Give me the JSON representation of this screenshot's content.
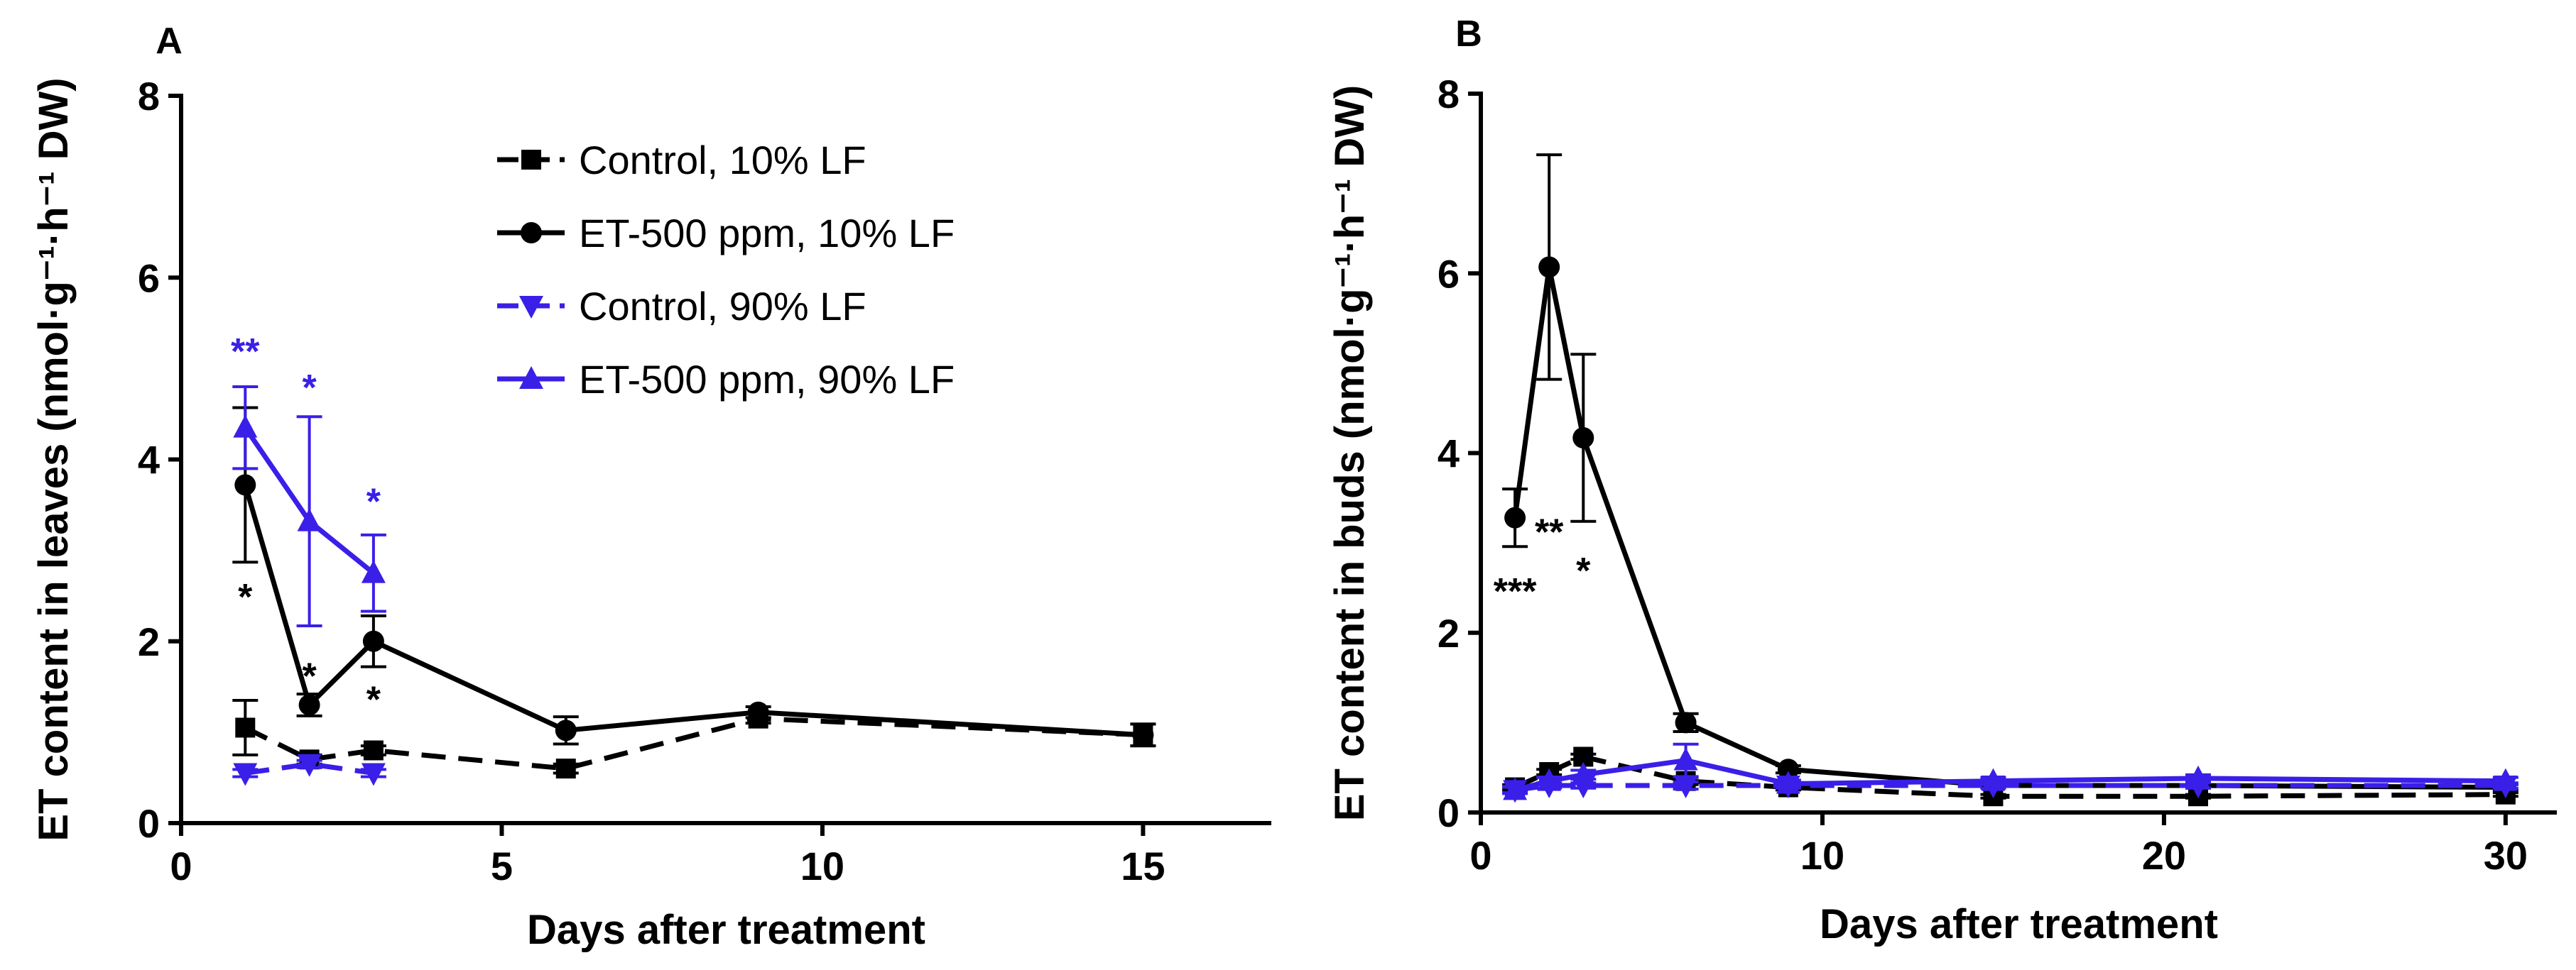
{
  "colors": {
    "black": "#000000",
    "blue": "#3a1fe8"
  },
  "chart_data": [
    {
      "type": "line",
      "panel": "A",
      "xlabel": "Days after treatment",
      "ylabel": "ET content in leaves (nmol·g⁻¹·h⁻¹ DW)",
      "xlim": [
        0,
        17
      ],
      "ylim": [
        0,
        8
      ],
      "xticks": [
        0,
        5,
        10,
        15
      ],
      "yticks": [
        0,
        2,
        4,
        6,
        8
      ],
      "legend": {
        "position": "top-center",
        "entries": [
          "Control, 10% LF",
          "ET-500 ppm, 10% LF",
          "Control, 90% LF",
          "ET-500 ppm, 90% LF"
        ]
      },
      "series": [
        {
          "name": "Control, 10% LF",
          "color": "black",
          "dash": "dashed",
          "marker": "square",
          "x": [
            1,
            2,
            3,
            6,
            9,
            15
          ],
          "y": [
            1.05,
            0.7,
            0.8,
            0.6,
            1.15,
            0.97
          ],
          "err": [
            0.3,
            0.05,
            0.05,
            0.05,
            0.05,
            0.12
          ]
        },
        {
          "name": "ET-500 ppm, 10% LF",
          "color": "black",
          "dash": "solid",
          "marker": "circle",
          "x": [
            1,
            2,
            3,
            6,
            9,
            15
          ],
          "y": [
            3.72,
            1.3,
            2.0,
            1.02,
            1.22,
            0.97
          ],
          "err": [
            0.85,
            0.12,
            0.28,
            0.15,
            0.06,
            0.12
          ]
        },
        {
          "name": "Control, 90% LF",
          "color": "blue",
          "dash": "dashed",
          "marker": "triangle-down",
          "x": [
            1,
            2,
            3
          ],
          "y": [
            0.55,
            0.65,
            0.55
          ],
          "err": [
            0.04,
            0.04,
            0.04
          ]
        },
        {
          "name": "ET-500 ppm, 90% LF",
          "color": "blue",
          "dash": "solid",
          "marker": "triangle-up",
          "x": [
            1,
            2,
            3
          ],
          "y": [
            4.35,
            3.32,
            2.75
          ],
          "err": [
            0.45,
            1.15,
            0.42
          ]
        }
      ],
      "annotations": [
        {
          "text": "**",
          "x": 1,
          "y": 5.05,
          "color": "blue"
        },
        {
          "text": "*",
          "x": 2,
          "y": 4.65,
          "color": "blue"
        },
        {
          "text": "*",
          "x": 3,
          "y": 3.4,
          "color": "blue"
        },
        {
          "text": "*",
          "x": 1,
          "y": 2.35,
          "color": "black"
        },
        {
          "text": "*",
          "x": 2,
          "y": 1.48,
          "color": "black"
        },
        {
          "text": "*",
          "x": 3,
          "y": 1.22,
          "color": "black"
        }
      ]
    },
    {
      "type": "line",
      "panel": "B",
      "xlabel": "Days after treatment",
      "ylabel": "ET content in buds (nmol·g⁻¹·h⁻¹ DW)",
      "xlim": [
        0,
        31.5
      ],
      "ylim": [
        0,
        8
      ],
      "xticks": [
        0,
        10,
        20,
        30
      ],
      "yticks": [
        0,
        2,
        4,
        6,
        8
      ],
      "legend": {
        "position": "none",
        "entries": []
      },
      "series": [
        {
          "name": "Control, 10% LF",
          "color": "black",
          "dash": "dashed",
          "marker": "square",
          "x": [
            1,
            2,
            3,
            6,
            9,
            15,
            21,
            30
          ],
          "y": [
            0.28,
            0.45,
            0.62,
            0.35,
            0.28,
            0.18,
            0.18,
            0.2
          ],
          "err": [
            0.03,
            0.03,
            0.03,
            0.04,
            0.03,
            0.02,
            0.02,
            0.02
          ]
        },
        {
          "name": "ET-500 ppm, 10% LF",
          "color": "black",
          "dash": "solid",
          "marker": "circle",
          "x": [
            1,
            2,
            3,
            6,
            9,
            15,
            21,
            30
          ],
          "y": [
            3.28,
            6.07,
            4.17,
            1.0,
            0.48,
            0.3,
            0.3,
            0.28
          ],
          "err": [
            0.32,
            1.25,
            0.93,
            0.1,
            0.04,
            0.03,
            0.03,
            0.03
          ]
        },
        {
          "name": "Control, 90% LF",
          "color": "blue",
          "dash": "dashed",
          "marker": "triangle-down",
          "x": [
            1,
            2,
            3,
            6,
            9,
            15,
            21,
            30
          ],
          "y": [
            0.25,
            0.3,
            0.3,
            0.3,
            0.3,
            0.3,
            0.3,
            0.3
          ],
          "err": [
            0.03,
            0.03,
            0.03,
            0.04,
            0.03,
            0.03,
            0.03,
            0.03
          ]
        },
        {
          "name": "ET-500 ppm, 90% LF",
          "color": "blue",
          "dash": "solid",
          "marker": "triangle-up",
          "x": [
            1,
            2,
            3,
            6,
            9,
            15,
            21,
            30
          ],
          "y": [
            0.25,
            0.35,
            0.42,
            0.58,
            0.32,
            0.35,
            0.38,
            0.35
          ],
          "err": [
            0.04,
            0.04,
            0.05,
            0.18,
            0.04,
            0.04,
            0.04,
            0.04
          ]
        }
      ],
      "annotations": [
        {
          "text": "***",
          "x": 1,
          "y": 2.32,
          "color": "black"
        },
        {
          "text": "**",
          "x": 2,
          "y": 2.98,
          "color": "black"
        },
        {
          "text": "*",
          "x": 3,
          "y": 2.55,
          "color": "black"
        }
      ]
    }
  ],
  "panels": {
    "A": {
      "letter": "A"
    },
    "B": {
      "letter": "B"
    }
  }
}
